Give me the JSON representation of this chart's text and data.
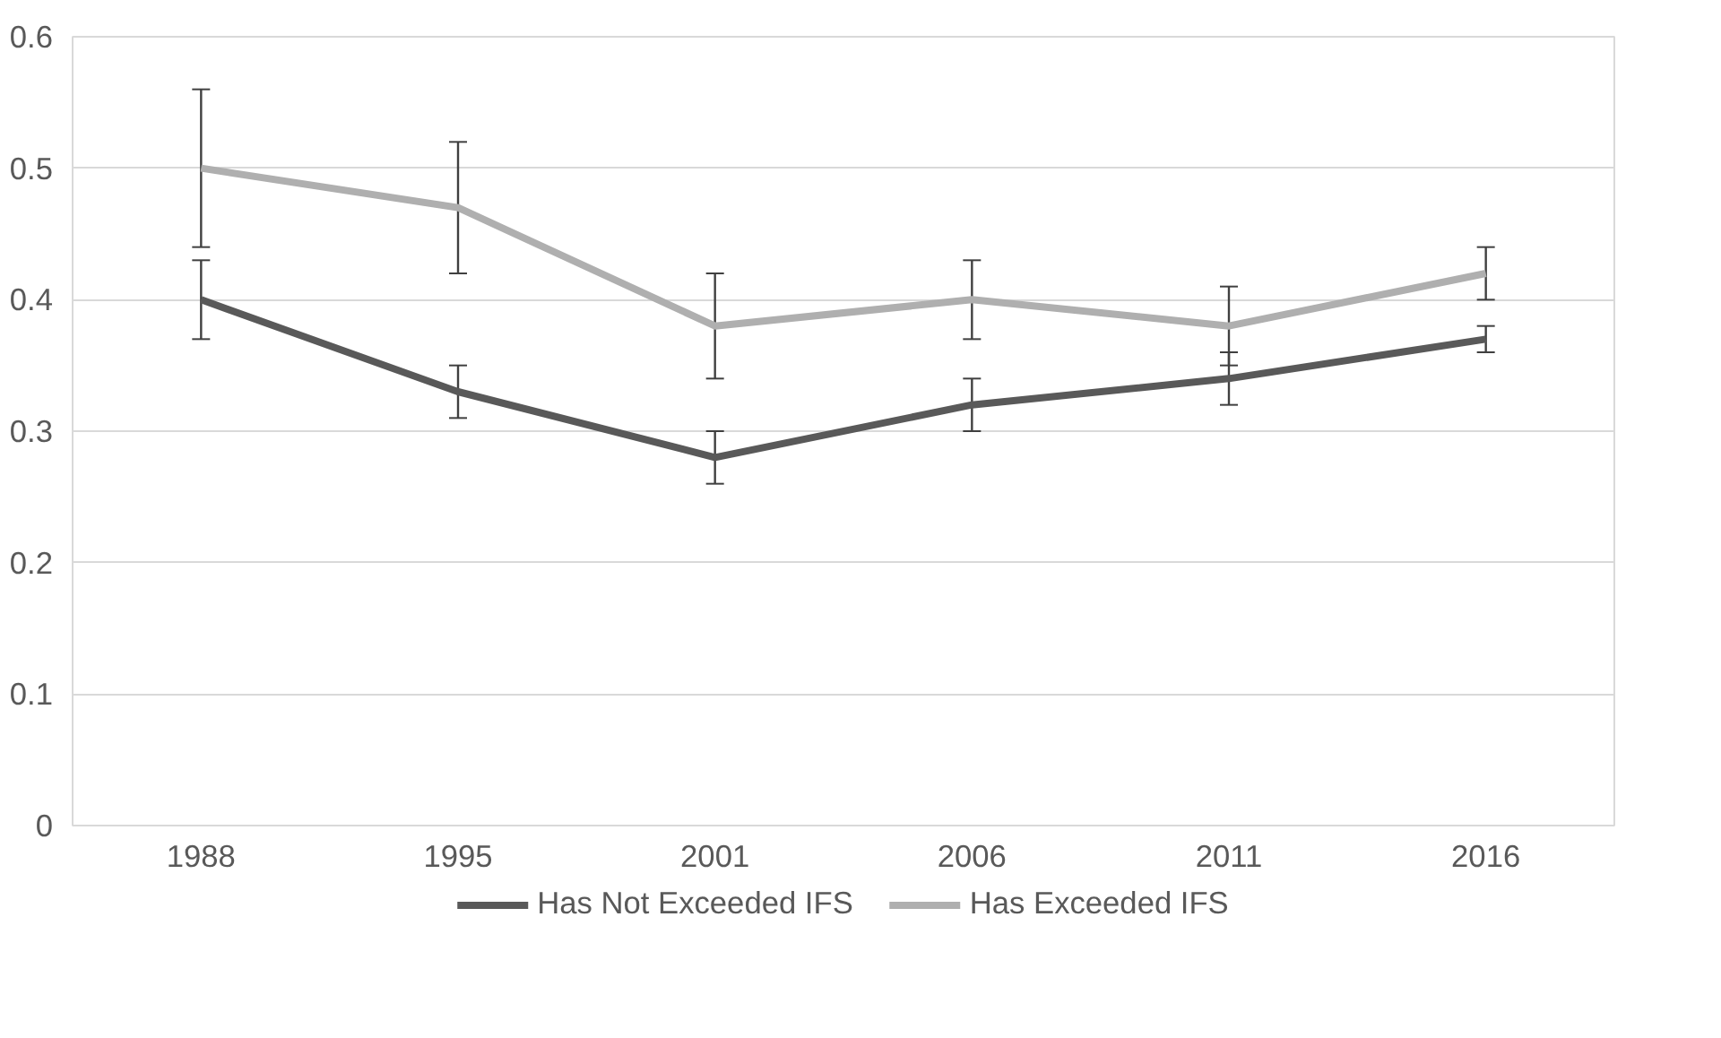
{
  "chart_data": {
    "type": "line",
    "categories": [
      "1988",
      "1995",
      "2001",
      "2006",
      "2011",
      "2016"
    ],
    "series": [
      {
        "name": "Has Not Exceeded IFS",
        "color": "#595959",
        "values": [
          0.4,
          0.33,
          0.28,
          0.32,
          0.34,
          0.37
        ],
        "errors": [
          0.03,
          0.02,
          0.02,
          0.02,
          0.02,
          0.01
        ]
      },
      {
        "name": "Has Exceeded IFS",
        "color": "#afafaf",
        "values": [
          0.5,
          0.47,
          0.38,
          0.4,
          0.38,
          0.42
        ],
        "errors": [
          0.06,
          0.05,
          0.04,
          0.03,
          0.03,
          0.02
        ]
      }
    ],
    "ylim": [
      0,
      0.6
    ],
    "yticks": [
      0,
      0.1,
      0.2,
      0.3,
      0.4,
      0.5,
      0.6
    ],
    "grid": "y",
    "legend": "bottom",
    "marker": "none",
    "line_style": "solid"
  }
}
